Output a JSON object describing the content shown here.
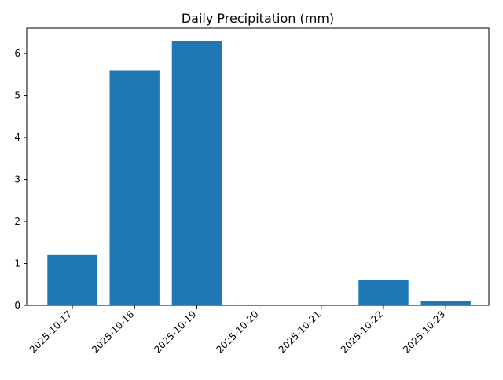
{
  "chart_data": {
    "type": "bar",
    "title": "Daily Precipitation (mm)",
    "xlabel": "",
    "ylabel": "",
    "categories": [
      "2025-10-17",
      "2025-10-18",
      "2025-10-19",
      "2025-10-20",
      "2025-10-21",
      "2025-10-22",
      "2025-10-23"
    ],
    "values": [
      1.2,
      5.6,
      6.3,
      0.0,
      0.0,
      0.6,
      0.1
    ],
    "ylim": [
      0,
      6.6
    ],
    "yticks": [
      0,
      1,
      2,
      3,
      4,
      5,
      6
    ],
    "grid": false,
    "legend": "none",
    "bar_color": "#1f77b4"
  }
}
